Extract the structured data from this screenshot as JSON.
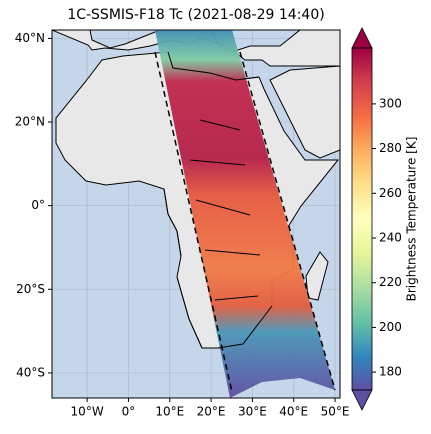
{
  "map": {
    "title": "1C-SSMIS-F18 Tc (2021-08-29 14:40)",
    "xlim": [
      -18.5,
      51.2
    ],
    "ylim": [
      -46,
      42
    ],
    "xticks": [
      {
        "value": -10,
        "label": "10°W"
      },
      {
        "value": 0,
        "label": "0°"
      },
      {
        "value": 10,
        "label": "10°E"
      },
      {
        "value": 20,
        "label": "20°E"
      },
      {
        "value": 30,
        "label": "30°E"
      },
      {
        "value": 40,
        "label": "40°E"
      },
      {
        "value": 50,
        "label": "50°E"
      }
    ],
    "yticks": [
      {
        "value": 40,
        "label": "40°N"
      },
      {
        "value": 20,
        "label": "20°N"
      },
      {
        "value": 0,
        "label": "0°"
      },
      {
        "value": -20,
        "label": "20°S"
      },
      {
        "value": -40,
        "label": "40°S"
      }
    ],
    "colorbar": {
      "label": "Brightness Temperature [K]",
      "clim": [
        172,
        325
      ],
      "ticks": [
        180,
        200,
        220,
        240,
        260,
        280,
        300
      ]
    }
  }
}
